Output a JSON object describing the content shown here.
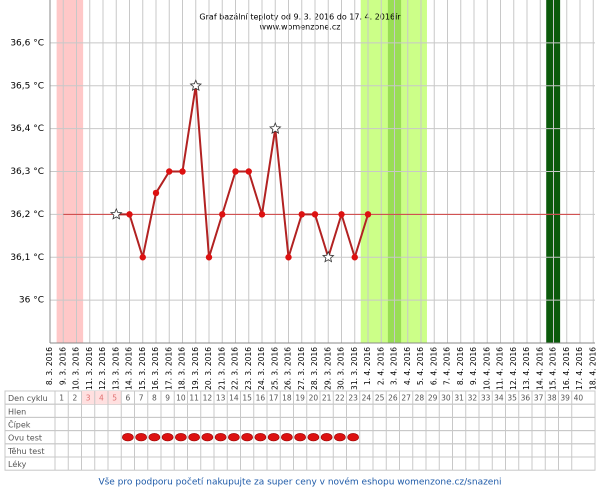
{
  "chart_data": {
    "type": "line",
    "title": "Graf bazální teploty od 9. 3. 2016 do 17. 4. 2016ír",
    "subtitle": "www.womenzone.cz",
    "categories": [
      "8. 3. 2016",
      "9. 3. 2016",
      "10. 3. 2016",
      "11. 3. 2016",
      "12. 3. 2016",
      "13. 3. 2016",
      "14. 3. 2016",
      "15. 3. 2016",
      "16. 3. 2016",
      "17. 3. 2016",
      "18. 3. 2016",
      "19. 3. 2016",
      "20. 3. 2016",
      "21. 3. 2016",
      "22. 3. 2016",
      "23. 3. 2016",
      "24. 3. 2016",
      "25. 3. 2016",
      "26. 3. 2016",
      "27. 3. 2016",
      "28. 3. 2016",
      "29. 3. 2016",
      "30. 3. 2016",
      "31. 3. 2016",
      "1. 4. 2016",
      "2. 4. 2016",
      "3. 4. 2016",
      "4. 4. 2016",
      "5. 4. 2016",
      "6. 4. 2016",
      "7. 4. 2016",
      "8. 4. 2016",
      "9. 4. 2016",
      "10. 4. 2016",
      "11. 4. 2016",
      "12. 4. 2016",
      "13. 4. 2016",
      "14. 4. 2016",
      "15. 4. 2016",
      "16. 4. 2016",
      "17. 4. 2016",
      "18. 4. 2016"
    ],
    "values": [
      null,
      null,
      null,
      null,
      null,
      36.2,
      36.2,
      36.1,
      36.25,
      36.3,
      36.3,
      36.5,
      36.1,
      36.2,
      36.3,
      36.3,
      36.2,
      36.4,
      36.1,
      36.2,
      36.2,
      36.1,
      36.2,
      36.1,
      36.2,
      null,
      null,
      null,
      null,
      null,
      null,
      null,
      null,
      null,
      null,
      null,
      null,
      null,
      null,
      null,
      null,
      null
    ],
    "markers": [
      null,
      null,
      null,
      null,
      null,
      "star",
      "circle",
      "circle",
      "circle",
      "circle",
      "circle",
      "star",
      "circle",
      "circle",
      "circle",
      "circle",
      "circle",
      "star",
      "circle",
      "circle",
      "circle",
      "star",
      "circle",
      "circle",
      "circle",
      null,
      null,
      null,
      null,
      null,
      null,
      null,
      null,
      null,
      null,
      null,
      null,
      null,
      null,
      null,
      null,
      null
    ],
    "color": "#b22222",
    "reference_line": {
      "value": 36.2,
      "color": "#d04040"
    },
    "ylim": [
      35.9,
      36.7
    ],
    "yticks": [
      {
        "value": 36,
        "label": "36 °C"
      },
      {
        "value": 36.1,
        "label": "36,1 °C"
      },
      {
        "value": 36.2,
        "label": "36,2 °C"
      },
      {
        "value": 36.3,
        "label": "36,3 °C"
      },
      {
        "value": 36.4,
        "label": "36,4 °C"
      },
      {
        "value": 36.5,
        "label": "36,5 °C"
      },
      {
        "value": 36.6,
        "label": "36,6 °C"
      }
    ],
    "grid": true,
    "bands": [
      {
        "start": 0.5,
        "end": 2.5,
        "color": "#ffc8c8"
      },
      {
        "start": 23.45,
        "end": 28.45,
        "color": "#ccff88"
      },
      {
        "start": 25.5,
        "end": 26.5,
        "color": "#99dd55"
      },
      {
        "start": 37.45,
        "end": 38.5,
        "color": "#0b5a0b"
      }
    ]
  },
  "cycle_table": {
    "row_labels": [
      "Den cyklu",
      "Hlen",
      "Čípek",
      "Ovu test",
      "Těhu test",
      "Léky"
    ],
    "days": [
      1,
      2,
      3,
      4,
      5,
      6,
      7,
      8,
      9,
      10,
      11,
      12,
      13,
      14,
      15,
      16,
      17,
      18,
      19,
      20,
      21,
      22,
      23,
      24,
      25,
      26,
      27,
      28,
      29,
      30,
      31,
      32,
      33,
      34,
      35,
      36,
      37,
      38,
      39,
      40
    ],
    "highlighted_days": [
      3,
      4,
      5
    ],
    "ovu_test_days": [
      6,
      7,
      8,
      9,
      10,
      11,
      12,
      13,
      14,
      15,
      16,
      17,
      18,
      19,
      20,
      21,
      22,
      23
    ]
  },
  "footer": "Vše pro podporu početí nakupujte za super ceny v novém eshopu womenzone.cz/snazeni"
}
